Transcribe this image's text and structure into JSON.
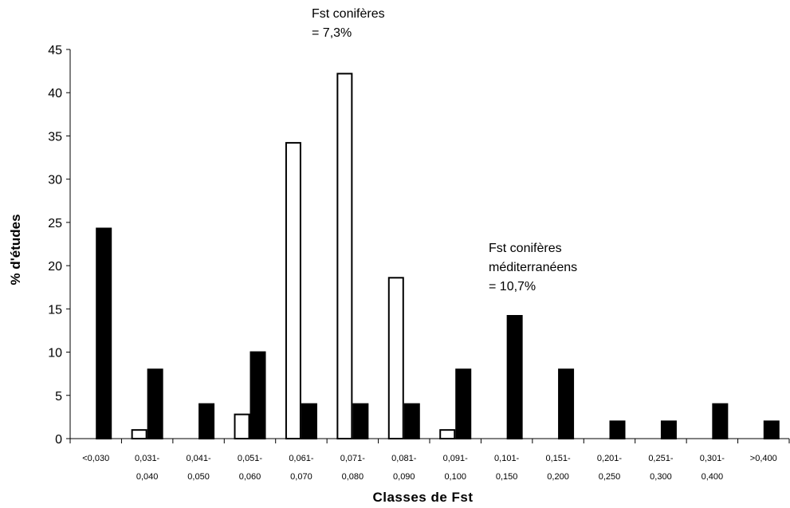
{
  "chart_data": {
    "type": "bar",
    "xlabel": "Classes de Fst",
    "ylabel": "% d'études",
    "ylim": [
      0,
      45
    ],
    "yticks": [
      0,
      5,
      10,
      15,
      20,
      25,
      30,
      35,
      40,
      45
    ],
    "grid": false,
    "categories": [
      [
        "<0,030"
      ],
      [
        "0,031-",
        "0,040"
      ],
      [
        "0,041-",
        "0,050"
      ],
      [
        "0,051-",
        "0,060"
      ],
      [
        "0,061-",
        "0,070"
      ],
      [
        "0,071-",
        "0,080"
      ],
      [
        "0,081-",
        "0,090"
      ],
      [
        "0,091-",
        "0,100"
      ],
      [
        "0,101-",
        "0,150"
      ],
      [
        "0,151-",
        "0,200"
      ],
      [
        "0,201-",
        "0,250"
      ],
      [
        "0,251-",
        "0,300"
      ],
      [
        "0,301-",
        "0,400"
      ],
      [
        ">0,400"
      ]
    ],
    "series": [
      {
        "fill": "#ffffff",
        "stroke": "#000000",
        "values": [
          0,
          1,
          0,
          2.8,
          34.2,
          42.2,
          18.6,
          1,
          0,
          0,
          0,
          0,
          0,
          0
        ]
      },
      {
        "fill": "#000000",
        "stroke": "#000000",
        "values": [
          24.3,
          8,
          4,
          10,
          4,
          4,
          4,
          8,
          14.2,
          8,
          2,
          2,
          4,
          2
        ]
      }
    ],
    "annotations": [
      {
        "lines": [
          "Fst conifères",
          "= 7,3%"
        ]
      },
      {
        "lines": [
          "Fst conifères",
          "méditerranéens",
          "= 10,7%"
        ]
      }
    ]
  }
}
